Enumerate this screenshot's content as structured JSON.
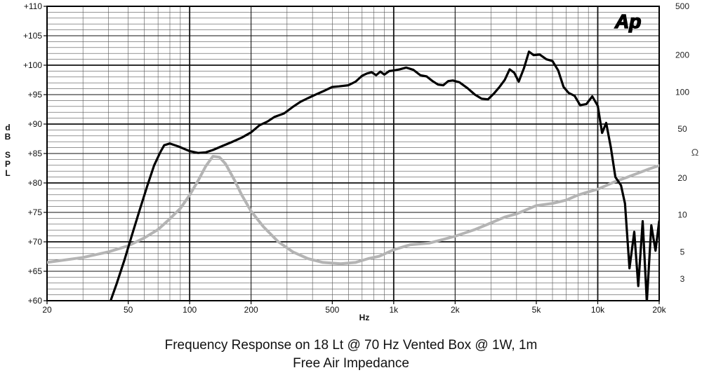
{
  "logo_text": "Ap",
  "chart_data": {
    "type": "line",
    "title": "Frequency Response on 18 Lt @ 70 Hz Vented Box @ 1W, 1m",
    "subtitle": "Free Air Impedance",
    "xlabel": "Hz",
    "ylabel_left": [
      "d",
      "B",
      "",
      "S",
      "P",
      "L"
    ],
    "ylabel_right": "Ω",
    "x_scale": "log",
    "xlim": [
      20,
      20000
    ],
    "ylim_left": [
      60,
      110
    ],
    "ylim_right": [
      2,
      500
    ],
    "y_right_scale": "log",
    "grid": true,
    "x_ticks": [
      {
        "v": 20,
        "label": "20"
      },
      {
        "v": 50,
        "label": "50"
      },
      {
        "v": 100,
        "label": "100"
      },
      {
        "v": 200,
        "label": "200"
      },
      {
        "v": 500,
        "label": "500"
      },
      {
        "v": 1000,
        "label": "1k"
      },
      {
        "v": 2000,
        "label": "2k"
      },
      {
        "v": 5000,
        "label": "5k"
      },
      {
        "v": 10000,
        "label": "10k"
      },
      {
        "v": 20000,
        "label": "20k"
      }
    ],
    "y_left_ticks": [
      {
        "v": 110,
        "label": "+110"
      },
      {
        "v": 105,
        "label": "+105"
      },
      {
        "v": 100,
        "label": "+100"
      },
      {
        "v": 95,
        "label": "+95"
      },
      {
        "v": 90,
        "label": "+90"
      },
      {
        "v": 85,
        "label": "+85"
      },
      {
        "v": 80,
        "label": "+80"
      },
      {
        "v": 75,
        "label": "+75"
      },
      {
        "v": 70,
        "label": "+70"
      },
      {
        "v": 65,
        "label": "+65"
      },
      {
        "v": 60,
        "label": "+60"
      }
    ],
    "y_right_ticks": [
      {
        "v": 500,
        "label": "500"
      },
      {
        "v": 200,
        "label": "200"
      },
      {
        "v": 100,
        "label": "100"
      },
      {
        "v": 50,
        "label": "50"
      },
      {
        "v": 20,
        "label": "20"
      },
      {
        "v": 10,
        "label": "10"
      },
      {
        "v": 5,
        "label": "5"
      },
      {
        "v": 3,
        "label": "3"
      }
    ],
    "series": [
      {
        "role": "SPL (dB)",
        "color": "#000000",
        "axis": "left",
        "points": [
          [
            41,
            60
          ],
          [
            44,
            63
          ],
          [
            48,
            67
          ],
          [
            52,
            71
          ],
          [
            57,
            75.5
          ],
          [
            62,
            79.5
          ],
          [
            67,
            83
          ],
          [
            72,
            85.3
          ],
          [
            75,
            86.4
          ],
          [
            80,
            86.7
          ],
          [
            88,
            86.2
          ],
          [
            100,
            85.4
          ],
          [
            110,
            85.1
          ],
          [
            120,
            85.2
          ],
          [
            130,
            85.6
          ],
          [
            145,
            86.3
          ],
          [
            160,
            86.9
          ],
          [
            180,
            87.7
          ],
          [
            200,
            88.6
          ],
          [
            220,
            89.8
          ],
          [
            240,
            90.4
          ],
          [
            260,
            91.2
          ],
          [
            290,
            91.8
          ],
          [
            320,
            92.9
          ],
          [
            350,
            93.8
          ],
          [
            380,
            94.4
          ],
          [
            420,
            95.1
          ],
          [
            460,
            95.7
          ],
          [
            500,
            96.3
          ],
          [
            540,
            96.4
          ],
          [
            600,
            96.6
          ],
          [
            650,
            97.2
          ],
          [
            700,
            98.2
          ],
          [
            740,
            98.6
          ],
          [
            780,
            98.8
          ],
          [
            820,
            98.3
          ],
          [
            860,
            98.9
          ],
          [
            900,
            98.4
          ],
          [
            950,
            99
          ],
          [
            1000,
            99.1
          ],
          [
            1070,
            99.3
          ],
          [
            1150,
            99.6
          ],
          [
            1250,
            99.2
          ],
          [
            1350,
            98.3
          ],
          [
            1450,
            98.1
          ],
          [
            1550,
            97.3
          ],
          [
            1650,
            96.7
          ],
          [
            1750,
            96.6
          ],
          [
            1850,
            97.3
          ],
          [
            1950,
            97.4
          ],
          [
            2100,
            97.1
          ],
          [
            2300,
            96.1
          ],
          [
            2500,
            95
          ],
          [
            2700,
            94.3
          ],
          [
            2900,
            94.2
          ],
          [
            3100,
            95.2
          ],
          [
            3300,
            96.3
          ],
          [
            3500,
            97.5
          ],
          [
            3700,
            99.3
          ],
          [
            3900,
            98.7
          ],
          [
            4100,
            97.2
          ],
          [
            4350,
            99.5
          ],
          [
            4600,
            102.3
          ],
          [
            4850,
            101.7
          ],
          [
            5200,
            101.8
          ],
          [
            5600,
            101
          ],
          [
            6000,
            100.7
          ],
          [
            6400,
            99.1
          ],
          [
            6800,
            96.3
          ],
          [
            7200,
            95.3
          ],
          [
            7700,
            94.8
          ],
          [
            8200,
            93.2
          ],
          [
            8800,
            93.4
          ],
          [
            9400,
            94.7
          ],
          [
            10000,
            93.1
          ],
          [
            10500,
            88.5
          ],
          [
            11000,
            90.2
          ],
          [
            11600,
            86
          ],
          [
            12200,
            81
          ],
          [
            13000,
            79.6
          ],
          [
            13600,
            76.5
          ],
          [
            14300,
            65.5
          ],
          [
            15100,
            71.7
          ],
          [
            15800,
            62.5
          ],
          [
            16600,
            73.5
          ],
          [
            17400,
            59.8
          ],
          [
            18300,
            72.8
          ],
          [
            19200,
            68.5
          ],
          [
            20000,
            73.5
          ]
        ]
      },
      {
        "role": "Impedance (Ω)",
        "color": "#b4b4b4",
        "axis": "right",
        "points": [
          [
            20,
            4.1
          ],
          [
            30,
            4.5
          ],
          [
            40,
            5
          ],
          [
            50,
            5.6
          ],
          [
            60,
            6.5
          ],
          [
            70,
            7.6
          ],
          [
            80,
            9.3
          ],
          [
            90,
            11.3
          ],
          [
            100,
            14.5
          ],
          [
            110,
            19
          ],
          [
            120,
            25
          ],
          [
            130,
            30
          ],
          [
            140,
            29.5
          ],
          [
            150,
            26
          ],
          [
            165,
            19.5
          ],
          [
            180,
            14.5
          ],
          [
            200,
            10.7
          ],
          [
            230,
            8
          ],
          [
            270,
            6.1
          ],
          [
            320,
            5
          ],
          [
            380,
            4.4
          ],
          [
            450,
            4.1
          ],
          [
            550,
            4
          ],
          [
            650,
            4.1
          ],
          [
            750,
            4.4
          ],
          [
            850,
            4.6
          ],
          [
            1000,
            5.2
          ],
          [
            1200,
            5.7
          ],
          [
            1500,
            5.9
          ],
          [
            2000,
            6.7
          ],
          [
            2500,
            7.6
          ],
          [
            3000,
            8.6
          ],
          [
            3500,
            9.6
          ],
          [
            4000,
            10.2
          ],
          [
            5000,
            11.9
          ],
          [
            6000,
            12.4
          ],
          [
            7000,
            13.2
          ],
          [
            8000,
            14.5
          ],
          [
            9000,
            15.4
          ],
          [
            10000,
            16.2
          ],
          [
            12000,
            18.5
          ],
          [
            15000,
            21.2
          ],
          [
            18000,
            23.8
          ],
          [
            20000,
            25.2
          ]
        ]
      }
    ]
  }
}
